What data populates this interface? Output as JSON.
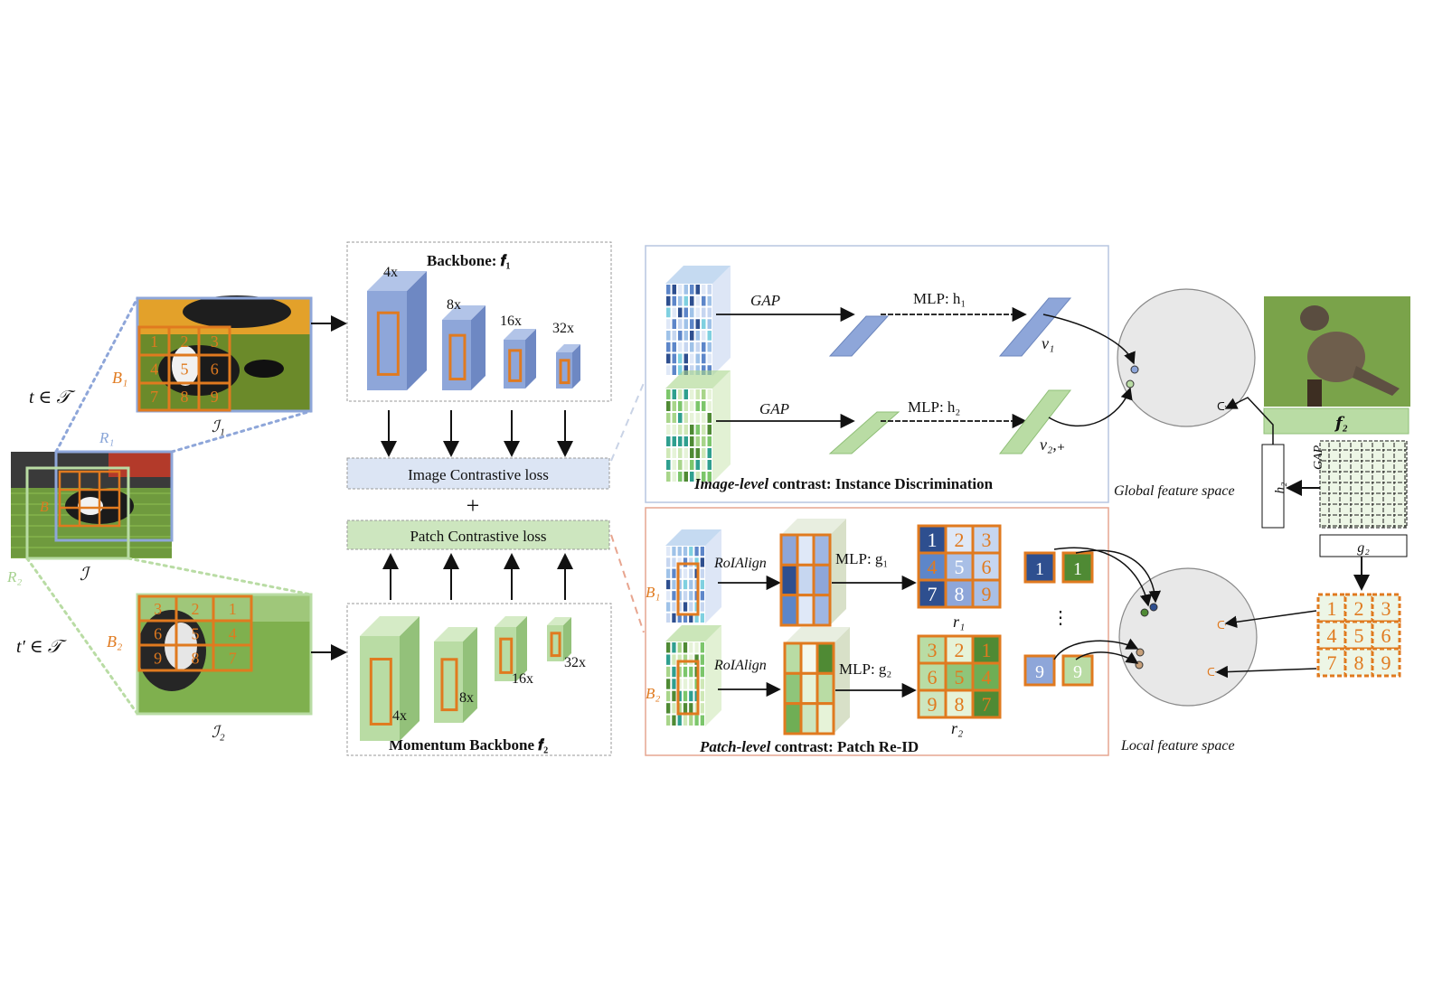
{
  "colors": {
    "orange": "#e07a1f",
    "blue_block": "#8ea6d9",
    "green_block": "#b9dca4",
    "blue_box": "#dce5f4",
    "green_box": "#cde6bf",
    "dark_blue": "#2e4f8f",
    "dark_green": "#4f8a34"
  },
  "input": {
    "transform1": "t ∈ 𝒯",
    "transform2": "t′ ∈ 𝒯",
    "image": "ℐ",
    "view1": "ℐ₁",
    "view2": "ℐ₂",
    "region1": "R₁",
    "region2": "R₂",
    "boxes1": "B₁",
    "boxes2": "B₂",
    "grid1": [
      "1",
      "2",
      "3",
      "4",
      "5",
      "6",
      "7",
      "8",
      "9"
    ],
    "grid2": [
      "3",
      "2",
      "1",
      "6",
      "5",
      "4",
      "9",
      "8",
      "7"
    ]
  },
  "backbone": {
    "top_title": "Backbone: 𝒇₁",
    "bottom_title": "Momentum Backbone 𝒇₂",
    "scales": [
      "4x",
      "8x",
      "16x",
      "32x"
    ],
    "image_loss": "Image Contrastive loss",
    "patch_loss": "Patch Contrastive loss",
    "plus": "+"
  },
  "image_level": {
    "gap": "GAP",
    "mlp1": "MLP: h₁",
    "mlp2": "MLP: h₂",
    "v1": "v₁",
    "v2": "v₂,₊",
    "caption_em": "Image-level",
    "caption_rest": " contrast: Instance Discrimination"
  },
  "patch_level": {
    "roi": "RoIAlign",
    "mlp1": "MLP: g₁",
    "mlp2": "MLP: g₂",
    "r1": "r₁",
    "r2": "r₂",
    "b1": "B₁",
    "b2": "B₂",
    "grid1": [
      "1",
      "2",
      "3",
      "4",
      "5",
      "6",
      "7",
      "8",
      "9"
    ],
    "grid2": [
      "3",
      "2",
      "1",
      "6",
      "5",
      "4",
      "9",
      "8",
      "7"
    ],
    "pair1": [
      "1",
      "1"
    ],
    "pair2": [
      "9",
      "9"
    ],
    "dots": "⋮",
    "caption_em": "Patch-level",
    "caption_rest": " contrast: Patch Re-ID"
  },
  "feature_space": {
    "global": "Global feature space",
    "local": "Local feature space",
    "f2": "𝒇₂",
    "h2": "h₂",
    "gap": "GAP",
    "g2": "g₂",
    "grid": [
      "1",
      "2",
      "3",
      "4",
      "5",
      "6",
      "7",
      "8",
      "9"
    ]
  }
}
